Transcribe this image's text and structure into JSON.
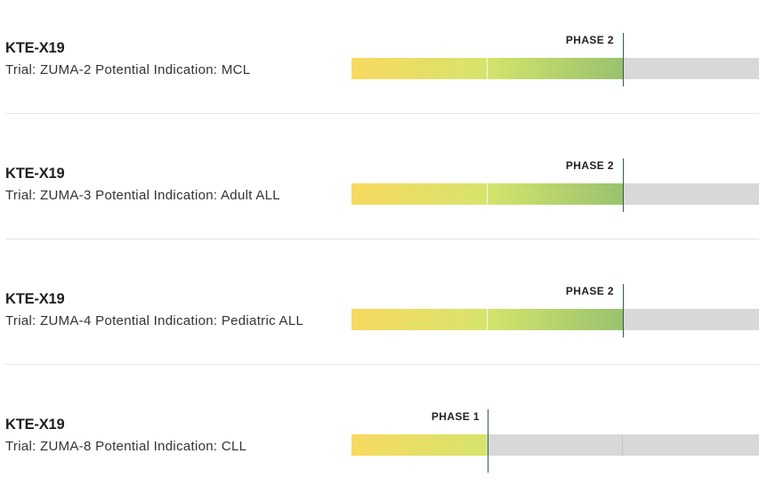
{
  "colors": {
    "phase1_gradient_start": "#f8d960",
    "phase1_gradient_end": "#d6e46c",
    "phase2_gradient_start": "#d4e46c",
    "phase2_gradient_end": "#99c26e",
    "track_background": "#d8d8d8",
    "marker": "#2f5d50"
  },
  "pipeline": {
    "programs": [
      {
        "drug": "KTE-X19",
        "trial_line": "Trial: ZUMA-2 Potential Indication: MCL",
        "phase_label": "PHASE 2",
        "phase": 2,
        "total_phases": 3
      },
      {
        "drug": "KTE-X19",
        "trial_line": "Trial: ZUMA-3 Potential Indication: Adult ALL",
        "phase_label": "PHASE 2",
        "phase": 2,
        "total_phases": 3
      },
      {
        "drug": "KTE-X19",
        "trial_line": "Trial: ZUMA-4 Potential Indication: Pediatric ALL",
        "phase_label": "PHASE 2",
        "phase": 2,
        "total_phases": 3
      },
      {
        "drug": "KTE-X19",
        "trial_line": "Trial: ZUMA-8 Potential Indication: CLL",
        "phase_label": "PHASE 1",
        "phase": 1,
        "total_phases": 3
      }
    ]
  }
}
